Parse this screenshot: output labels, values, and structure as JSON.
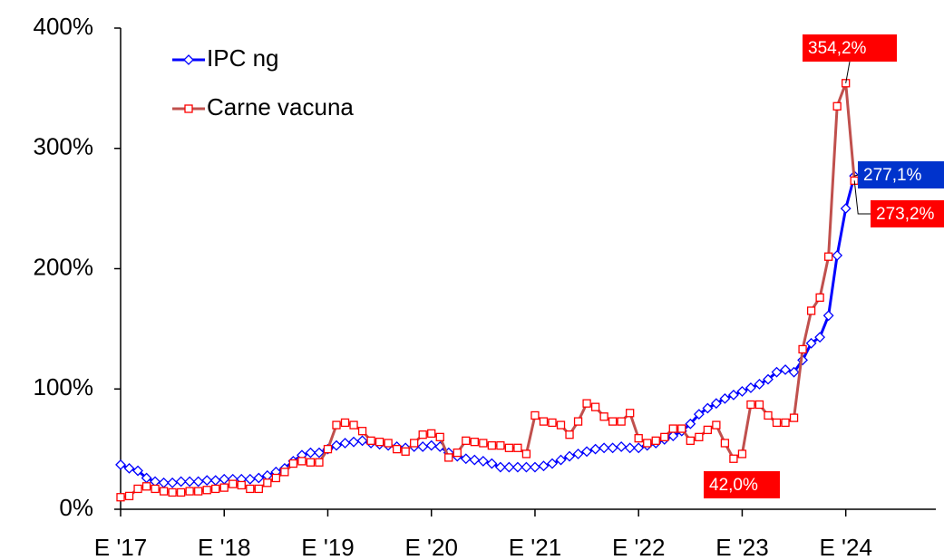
{
  "chart_data": {
    "type": "line",
    "categories": [
      "E '17",
      null,
      null,
      null,
      null,
      null,
      null,
      null,
      null,
      null,
      null,
      null,
      "E '18",
      null,
      null,
      null,
      null,
      null,
      null,
      null,
      null,
      null,
      null,
      null,
      "E '19",
      null,
      null,
      null,
      null,
      null,
      null,
      null,
      null,
      null,
      null,
      null,
      "E '20",
      null,
      null,
      null,
      null,
      null,
      null,
      null,
      null,
      null,
      null,
      null,
      "E '21",
      null,
      null,
      null,
      null,
      null,
      null,
      null,
      null,
      null,
      null,
      null,
      "E '22",
      null,
      null,
      null,
      null,
      null,
      null,
      null,
      null,
      null,
      null,
      null,
      "E '23",
      null,
      null,
      null,
      null,
      null,
      null,
      null,
      null,
      null,
      null,
      null,
      "E '24",
      null
    ],
    "series": [
      {
        "name": "IPC ng",
        "color": "#0000ff",
        "marker": "diamond",
        "values": [
          37,
          34,
          32,
          26,
          23,
          22,
          22,
          23,
          23,
          23,
          24,
          24,
          25,
          25,
          25,
          25,
          26,
          28,
          31,
          34,
          40,
          45,
          47,
          47,
          50,
          53,
          55,
          56,
          57,
          55,
          54,
          53,
          52,
          51,
          52,
          52,
          53,
          52,
          47,
          44,
          42,
          41,
          40,
          38,
          35,
          35,
          35,
          35,
          35,
          36,
          38,
          41,
          44,
          46,
          48,
          50,
          51,
          51,
          52,
          51,
          51,
          53,
          55,
          58,
          61,
          65,
          71,
          79,
          84,
          88,
          92,
          95,
          98,
          101,
          104,
          108,
          114,
          116,
          114,
          124,
          138,
          143,
          161,
          211,
          250,
          277.1
        ],
        "value_labels": {
          "85": "277,1%"
        }
      },
      {
        "name": "Carne vacuna",
        "color": "#c0504d",
        "marker": "square",
        "values": [
          10,
          11,
          17,
          19,
          17,
          15,
          14,
          14,
          15,
          15,
          16,
          17,
          18,
          21,
          20,
          17,
          17,
          22,
          26,
          31,
          38,
          40,
          39,
          39,
          50,
          70,
          72,
          70,
          65,
          57,
          56,
          55,
          50,
          48,
          55,
          62,
          63,
          60,
          43,
          47,
          57,
          56,
          55,
          53,
          53,
          51,
          51,
          46,
          78,
          73,
          72,
          70,
          62,
          73,
          88,
          85,
          77,
          73,
          73,
          80,
          59,
          55,
          57,
          60,
          67,
          67,
          57,
          60,
          66,
          70,
          55,
          42,
          46,
          87,
          87,
          78,
          72,
          72,
          76,
          133,
          165,
          176,
          210,
          335,
          354.2,
          273.2
        ],
        "value_labels": {
          "71": "42,0%",
          "84": "354,2%",
          "85": "273,2%"
        }
      }
    ],
    "ylim": [
      0,
      400
    ],
    "yticks": [
      {
        "value": 0,
        "label": "0%"
      },
      {
        "value": 100,
        "label": "100%"
      },
      {
        "value": 200,
        "label": "200%"
      },
      {
        "value": 300,
        "label": "300%"
      },
      {
        "value": 400,
        "label": "400%"
      }
    ],
    "legend": "upper left",
    "grid": false
  }
}
